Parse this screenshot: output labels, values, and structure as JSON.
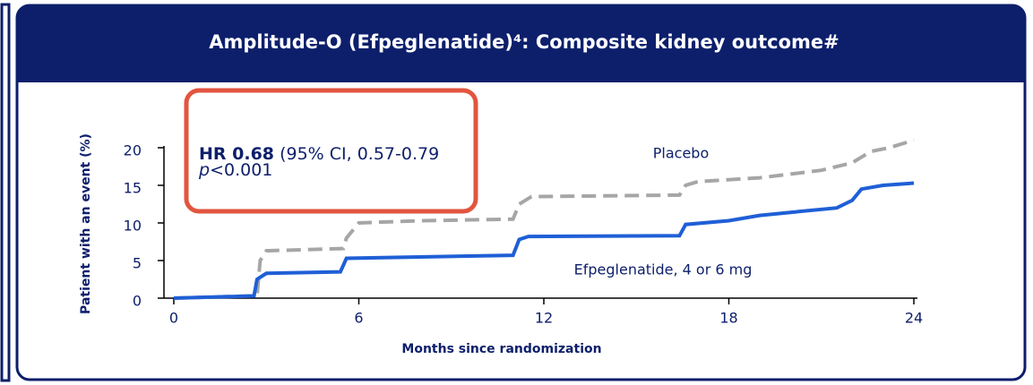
{
  "chart_data": {
    "type": "line",
    "title": "Amplitude-O (Efpeglenatide)⁴:  Composite kidney outcome#",
    "x_label": "Months since randomization",
    "y_label": "Patient with an event (%)",
    "annotation": {
      "hr": "HR 0.68",
      "ci": "(95% CI, 0.57-0.79",
      "p_symbol": "p",
      "p_value": "<0.001"
    },
    "xlim": [
      0,
      24
    ],
    "xticks": [
      0,
      6,
      12,
      18,
      24
    ],
    "ylim": [
      0,
      20
    ],
    "yticks": [
      0,
      5,
      10,
      15,
      20
    ],
    "series": [
      {
        "name": "Placebo",
        "color": "#a6a6a6",
        "dashed": true,
        "x": [
          0,
          2.5,
          2.7,
          2.8,
          3.0,
          5.5,
          5.6,
          6.0,
          8,
          11,
          11.2,
          11.6,
          16.4,
          16.6,
          17,
          19,
          20,
          21,
          22,
          22.6,
          23.2,
          24
        ],
        "values": [
          0,
          0.3,
          0.3,
          5,
          6.3,
          6.6,
          8,
          10,
          10.3,
          10.5,
          12.5,
          13.5,
          13.7,
          15,
          15.5,
          16,
          16.5,
          17,
          18,
          19.5,
          20,
          21
        ]
      },
      {
        "name": "Efpeglenatide, 4 or 6 mg",
        "color": "#1f5fd6",
        "dashed": false,
        "x": [
          0,
          2.6,
          2.7,
          3.0,
          5.4,
          5.6,
          11.0,
          11.2,
          11.5,
          16.4,
          16.6,
          18,
          19,
          20,
          21.5,
          22,
          22.3,
          23,
          24
        ],
        "values": [
          0,
          0.3,
          2.5,
          3.3,
          3.5,
          5.3,
          5.7,
          7.8,
          8.2,
          8.3,
          9.8,
          10.3,
          11,
          11.4,
          12,
          13,
          14.5,
          15,
          15.3
        ]
      }
    ]
  }
}
